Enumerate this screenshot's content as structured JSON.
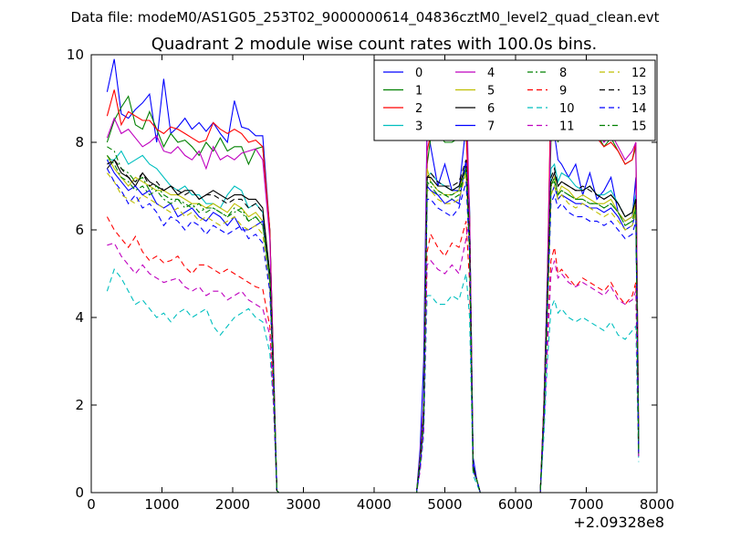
{
  "figure": {
    "suptitle": "Data file: modeM0/AS1G05_253T02_9000000614_04836cztM0_level2_quad_clean.evt"
  },
  "chart_data": {
    "type": "line",
    "title": "Quadrant 2 module wise count rates with 100.0s bins.",
    "xlabel": "",
    "ylabel": "",
    "x_offset_label": "+2.09328e8",
    "xlim": [
      0,
      8000
    ],
    "ylim": [
      0,
      10
    ],
    "x_ticks": [
      "0",
      "1000",
      "2000",
      "3000",
      "4000",
      "5000",
      "6000",
      "7000",
      "8000"
    ],
    "y_ticks": [
      "0",
      "2",
      "4",
      "6",
      "8",
      "10"
    ],
    "grid": false,
    "legend_position": "top-right",
    "legend_columns": 4,
    "x": [
      225,
      325,
      425,
      525,
      625,
      725,
      825,
      925,
      1025,
      1125,
      1225,
      1325,
      1425,
      1525,
      1625,
      1725,
      1825,
      1925,
      2025,
      2125,
      2225,
      2325,
      2425,
      2525,
      2575,
      2625,
      2650,
      2700,
      4600,
      4650,
      4700,
      4750,
      4800,
      4900,
      5000,
      5100,
      5200,
      5300,
      5350,
      5400,
      5450,
      5500,
      5550,
      6350,
      6400,
      6450,
      6500,
      6550,
      6600,
      6650,
      6750,
      6850,
      6950,
      7050,
      7150,
      7250,
      7350,
      7450,
      7550,
      7650,
      7700,
      7740
    ],
    "series": [
      {
        "name": "0",
        "style": "solid",
        "color": "#0000ff",
        "values": [
          9.15,
          9.9,
          8.65,
          8.55,
          8.75,
          8.9,
          9.1,
          8.0,
          9.45,
          8.2,
          8.35,
          8.55,
          8.3,
          8.45,
          8.25,
          8.45,
          8.2,
          8.0,
          8.95,
          8.35,
          8.3,
          8.15,
          8.15,
          6.0,
          3.0,
          0.05,
          0.0,
          0.0,
          0.0,
          1.0,
          3.0,
          8.5,
          7.9,
          7.0,
          7.5,
          6.9,
          6.9,
          8.4,
          6.5,
          0.8,
          0.3,
          0.0,
          0.0,
          0.0,
          2.0,
          5.0,
          9.0,
          8.2,
          7.6,
          7.5,
          7.2,
          7.5,
          6.8,
          7.3,
          6.7,
          6.9,
          7.2,
          6.4,
          6.2,
          6.3,
          7.2,
          1.0
        ]
      },
      {
        "name": "1",
        "style": "solid",
        "color": "#008000",
        "values": [
          8.0,
          8.5,
          8.8,
          9.05,
          8.4,
          8.3,
          8.7,
          8.3,
          7.9,
          8.2,
          8.0,
          8.05,
          7.9,
          7.7,
          8.0,
          7.8,
          8.1,
          7.8,
          7.9,
          7.9,
          7.5,
          7.85,
          7.9,
          6.0,
          3.0,
          0.05,
          0.0,
          0.0,
          0.0,
          0.8,
          2.0,
          7.5,
          8.1,
          8.2,
          8.0,
          8.0,
          8.1,
          8.35,
          6.4,
          0.6,
          0.3,
          0.0,
          0.0,
          0.0,
          2.0,
          4.8,
          8.0,
          8.7,
          8.0,
          8.5,
          8.2,
          8.2,
          8.3,
          8.3,
          8.2,
          7.9,
          8.1,
          7.8,
          7.5,
          7.6,
          7.9,
          1.2
        ]
      },
      {
        "name": "2",
        "style": "solid",
        "color": "#ff0000",
        "values": [
          8.6,
          9.2,
          8.4,
          8.7,
          8.6,
          8.5,
          8.5,
          8.3,
          8.2,
          8.35,
          8.3,
          8.2,
          8.1,
          8.0,
          8.05,
          8.45,
          8.3,
          8.2,
          8.3,
          8.2,
          8.0,
          8.05,
          7.9,
          6.0,
          3.0,
          0.05,
          0.0,
          0.0,
          0.0,
          0.8,
          2.0,
          7.8,
          8.2,
          8.4,
          8.2,
          8.3,
          8.1,
          8.2,
          6.3,
          0.6,
          0.3,
          0.0,
          0.0,
          0.0,
          2.0,
          4.8,
          9.3,
          8.5,
          8.2,
          8.4,
          8.3,
          8.1,
          8.3,
          8.2,
          8.1,
          7.9,
          8.0,
          7.8,
          7.5,
          7.6,
          8.0,
          1.2
        ]
      },
      {
        "name": "3",
        "style": "solid",
        "color": "#00bfbf",
        "values": [
          7.6,
          7.6,
          7.8,
          7.5,
          7.6,
          7.7,
          7.5,
          7.4,
          7.2,
          7.0,
          6.9,
          7.0,
          6.8,
          6.8,
          6.6,
          6.6,
          6.5,
          6.8,
          7.0,
          6.9,
          6.5,
          6.6,
          6.4,
          5.0,
          2.8,
          0.05,
          0.0,
          0.0,
          0.0,
          0.7,
          1.8,
          7.2,
          7.3,
          7.1,
          7.0,
          6.9,
          7.0,
          7.4,
          5.8,
          0.6,
          0.3,
          0.0,
          0.0,
          0.0,
          1.8,
          4.5,
          7.4,
          7.5,
          7.1,
          7.3,
          7.2,
          7.0,
          6.9,
          7.0,
          6.8,
          6.8,
          6.9,
          6.6,
          6.3,
          6.4,
          6.8,
          1.0
        ]
      },
      {
        "name": "4",
        "style": "solid",
        "color": "#bf00bf",
        "values": [
          8.1,
          8.55,
          8.2,
          8.3,
          8.1,
          7.9,
          8.0,
          8.15,
          7.8,
          7.75,
          7.9,
          7.7,
          7.6,
          7.8,
          7.4,
          7.9,
          7.6,
          7.7,
          7.6,
          7.75,
          7.8,
          7.85,
          7.6,
          5.8,
          3.0,
          0.05,
          0.0,
          0.0,
          0.0,
          0.8,
          2.0,
          8.5,
          8.6,
          8.4,
          8.5,
          8.4,
          8.5,
          9.5,
          6.2,
          0.6,
          0.3,
          0.0,
          0.0,
          0.0,
          2.0,
          4.8,
          8.5,
          8.6,
          8.2,
          8.4,
          8.6,
          8.3,
          8.4,
          8.5,
          8.3,
          8.0,
          8.2,
          7.9,
          7.6,
          7.8,
          8.0,
          1.1
        ]
      },
      {
        "name": "5",
        "style": "solid",
        "color": "#bfbf00",
        "values": [
          7.7,
          7.4,
          7.2,
          7.0,
          7.2,
          7.1,
          7.0,
          6.9,
          6.9,
          6.8,
          6.8,
          6.7,
          6.6,
          6.6,
          6.5,
          6.6,
          6.5,
          6.4,
          6.6,
          6.5,
          6.3,
          6.4,
          6.2,
          5.0,
          2.7,
          0.05,
          0.0,
          0.0,
          0.0,
          0.7,
          1.8,
          7.4,
          7.1,
          6.9,
          6.8,
          6.8,
          6.9,
          7.5,
          5.6,
          0.5,
          0.3,
          0.0,
          0.0,
          0.0,
          1.8,
          4.4,
          7.0,
          7.2,
          6.8,
          7.0,
          6.9,
          6.7,
          6.8,
          6.7,
          6.6,
          6.6,
          6.7,
          6.4,
          6.2,
          6.3,
          6.6,
          0.9
        ]
      },
      {
        "name": "6",
        "style": "solid",
        "color": "#000000",
        "values": [
          7.4,
          7.6,
          7.3,
          7.2,
          7.0,
          7.3,
          7.1,
          7.0,
          6.9,
          7.0,
          6.8,
          6.9,
          6.9,
          6.7,
          6.8,
          6.9,
          6.8,
          6.7,
          6.8,
          6.8,
          6.7,
          6.7,
          6.5,
          5.0,
          2.8,
          0.05,
          0.0,
          0.0,
          0.0,
          0.7,
          1.8,
          7.2,
          7.2,
          7.0,
          7.0,
          6.9,
          7.0,
          7.5,
          5.8,
          0.6,
          0.3,
          0.0,
          0.0,
          0.0,
          1.8,
          4.5,
          7.1,
          7.3,
          7.0,
          7.1,
          7.0,
          6.9,
          6.9,
          7.0,
          6.8,
          6.7,
          6.8,
          6.6,
          6.3,
          6.4,
          6.7,
          1.0
        ]
      },
      {
        "name": "7",
        "style": "solid",
        "color": "#0000ff",
        "values": [
          7.6,
          7.3,
          7.1,
          6.9,
          7.0,
          6.8,
          6.9,
          6.6,
          6.5,
          6.6,
          6.3,
          6.4,
          6.5,
          6.3,
          6.2,
          6.4,
          6.3,
          6.1,
          6.3,
          6.0,
          6.0,
          6.1,
          6.2,
          4.8,
          2.7,
          0.05,
          0.0,
          0.0,
          0.0,
          0.7,
          1.7,
          7.0,
          6.9,
          6.8,
          6.6,
          6.7,
          6.6,
          7.6,
          5.6,
          0.5,
          0.3,
          0.0,
          0.0,
          0.0,
          1.7,
          4.4,
          6.8,
          7.0,
          6.7,
          6.8,
          6.7,
          6.6,
          6.6,
          6.5,
          6.5,
          6.4,
          6.5,
          6.3,
          6.0,
          6.1,
          6.4,
          0.9
        ]
      },
      {
        "name": "8",
        "style": "dashdot",
        "color": "#008000",
        "values": [
          7.9,
          7.8,
          7.4,
          7.3,
          7.1,
          7.2,
          6.9,
          7.0,
          6.8,
          6.7,
          6.7,
          6.6,
          6.5,
          6.6,
          6.4,
          6.5,
          6.4,
          6.3,
          6.4,
          6.5,
          6.2,
          6.3,
          6.1,
          4.9,
          2.7,
          0.05,
          0.0,
          0.0,
          0.0,
          0.7,
          1.7,
          7.1,
          7.0,
          6.8,
          6.8,
          6.7,
          6.8,
          7.4,
          5.6,
          0.5,
          0.3,
          0.0,
          0.0,
          0.0,
          1.7,
          4.3,
          7.0,
          7.1,
          6.8,
          6.9,
          6.8,
          6.7,
          6.7,
          6.6,
          6.6,
          6.5,
          6.6,
          6.4,
          6.1,
          6.2,
          6.5,
          0.9
        ]
      },
      {
        "name": "9",
        "style": "dashed",
        "color": "#ff0000",
        "values": [
          6.3,
          6.0,
          5.8,
          5.6,
          5.85,
          5.5,
          5.3,
          5.4,
          5.25,
          5.3,
          5.4,
          5.15,
          5.0,
          5.2,
          5.2,
          5.1,
          5.0,
          5.1,
          5.0,
          4.9,
          4.8,
          4.7,
          4.65,
          3.8,
          2.2,
          0.05,
          0.0,
          0.0,
          0.0,
          0.6,
          1.5,
          5.5,
          5.9,
          5.6,
          5.4,
          5.7,
          5.6,
          6.2,
          4.8,
          0.5,
          0.3,
          0.0,
          0.0,
          0.0,
          1.6,
          3.5,
          5.3,
          5.6,
          5.0,
          5.1,
          4.9,
          4.7,
          4.9,
          4.8,
          4.7,
          4.6,
          4.8,
          4.5,
          4.3,
          4.5,
          4.8,
          0.8
        ]
      },
      {
        "name": "10",
        "style": "dashed",
        "color": "#00bfbf",
        "values": [
          4.6,
          5.1,
          4.9,
          4.6,
          4.3,
          4.4,
          4.2,
          4.0,
          4.1,
          3.9,
          4.1,
          4.2,
          4.0,
          4.1,
          4.2,
          3.8,
          3.6,
          3.8,
          4.0,
          4.1,
          4.2,
          4.0,
          3.9,
          3.2,
          2.0,
          0.05,
          0.0,
          0.0,
          0.0,
          0.5,
          1.3,
          4.5,
          4.5,
          4.3,
          4.3,
          4.5,
          4.4,
          5.0,
          4.0,
          0.4,
          0.2,
          0.0,
          0.0,
          0.0,
          1.3,
          3.0,
          4.2,
          4.4,
          4.1,
          4.2,
          4.0,
          3.9,
          4.0,
          3.9,
          3.8,
          3.7,
          3.9,
          3.6,
          3.5,
          3.7,
          3.8,
          0.7
        ]
      },
      {
        "name": "11",
        "style": "dashed",
        "color": "#bf00bf",
        "values": [
          5.65,
          5.7,
          5.4,
          5.2,
          5.0,
          5.2,
          5.0,
          4.9,
          4.8,
          4.85,
          4.9,
          4.7,
          4.6,
          4.7,
          4.5,
          4.6,
          4.6,
          4.4,
          4.5,
          4.6,
          4.4,
          4.3,
          4.2,
          3.6,
          2.1,
          0.05,
          0.0,
          0.0,
          0.0,
          0.5,
          1.4,
          5.2,
          5.3,
          5.1,
          5.0,
          5.2,
          5.0,
          5.8,
          6.4,
          0.5,
          0.3,
          0.0,
          0.0,
          0.0,
          1.5,
          3.3,
          5.0,
          5.3,
          4.9,
          5.0,
          4.8,
          4.7,
          4.8,
          4.7,
          4.6,
          4.5,
          4.7,
          4.4,
          4.3,
          4.4,
          4.6,
          0.8
        ]
      },
      {
        "name": "12",
        "style": "dashed",
        "color": "#bfbf00",
        "values": [
          7.3,
          7.1,
          6.8,
          6.7,
          6.6,
          6.8,
          6.7,
          6.6,
          6.5,
          6.4,
          6.5,
          6.3,
          6.4,
          6.2,
          6.3,
          6.2,
          6.1,
          6.2,
          6.3,
          6.1,
          6.0,
          6.1,
          5.9,
          4.7,
          2.6,
          0.05,
          0.0,
          0.0,
          0.0,
          0.7,
          1.7,
          6.9,
          6.9,
          6.7,
          6.6,
          6.6,
          6.7,
          7.3,
          5.5,
          0.5,
          0.3,
          0.0,
          0.0,
          0.0,
          1.7,
          4.2,
          6.8,
          7.0,
          6.7,
          6.8,
          6.6,
          6.5,
          6.6,
          6.5,
          6.4,
          6.3,
          6.4,
          6.2,
          6.0,
          6.1,
          6.4,
          0.9
        ]
      },
      {
        "name": "13",
        "style": "dashed",
        "color": "#000000",
        "values": [
          7.5,
          7.6,
          7.4,
          7.2,
          7.1,
          7.3,
          7.0,
          7.1,
          6.9,
          7.0,
          6.9,
          6.8,
          6.9,
          6.7,
          6.8,
          6.8,
          6.7,
          6.6,
          6.7,
          6.7,
          6.5,
          6.6,
          6.4,
          5.0,
          2.8,
          0.05,
          0.0,
          0.0,
          0.0,
          0.7,
          1.8,
          7.2,
          7.3,
          7.1,
          7.0,
          7.0,
          7.1,
          7.6,
          5.8,
          0.6,
          0.3,
          0.0,
          0.0,
          0.0,
          1.8,
          4.5,
          7.2,
          7.4,
          7.0,
          7.1,
          7.0,
          6.9,
          7.0,
          6.9,
          6.8,
          6.7,
          6.8,
          6.6,
          6.3,
          6.4,
          6.7,
          1.0
        ]
      },
      {
        "name": "14",
        "style": "dashed",
        "color": "#0000ff",
        "values": [
          7.4,
          7.1,
          6.9,
          6.6,
          6.8,
          6.5,
          6.6,
          6.4,
          6.1,
          6.3,
          6.2,
          6.0,
          6.2,
          6.1,
          5.9,
          6.1,
          6.0,
          5.9,
          6.0,
          6.1,
          5.8,
          5.9,
          5.7,
          4.6,
          2.6,
          0.05,
          0.0,
          0.0,
          0.0,
          0.6,
          1.6,
          6.7,
          6.7,
          6.5,
          6.4,
          6.3,
          6.5,
          7.1,
          5.4,
          0.5,
          0.3,
          0.0,
          0.0,
          0.0,
          1.6,
          4.1,
          6.6,
          6.8,
          6.5,
          6.6,
          6.4,
          6.3,
          6.3,
          6.2,
          6.2,
          6.1,
          6.2,
          6.0,
          5.8,
          5.9,
          6.2,
          0.9
        ]
      },
      {
        "name": "15",
        "style": "dashdot",
        "color": "#008000",
        "values": [
          7.7,
          7.5,
          7.2,
          7.1,
          6.9,
          7.0,
          6.8,
          6.9,
          6.7,
          6.6,
          6.7,
          6.5,
          6.6,
          6.4,
          6.5,
          6.5,
          6.4,
          6.3,
          6.5,
          6.4,
          6.2,
          6.3,
          6.1,
          4.9,
          2.7,
          0.05,
          0.0,
          0.0,
          0.0,
          0.7,
          1.7,
          7.0,
          7.1,
          6.9,
          6.8,
          6.8,
          6.9,
          7.4,
          5.6,
          0.5,
          0.3,
          0.0,
          0.0,
          0.0,
          1.7,
          4.3,
          7.0,
          7.2,
          6.8,
          6.9,
          6.8,
          6.7,
          6.7,
          6.6,
          6.6,
          6.5,
          6.6,
          6.4,
          6.1,
          6.2,
          6.5,
          0.9
        ]
      }
    ]
  }
}
